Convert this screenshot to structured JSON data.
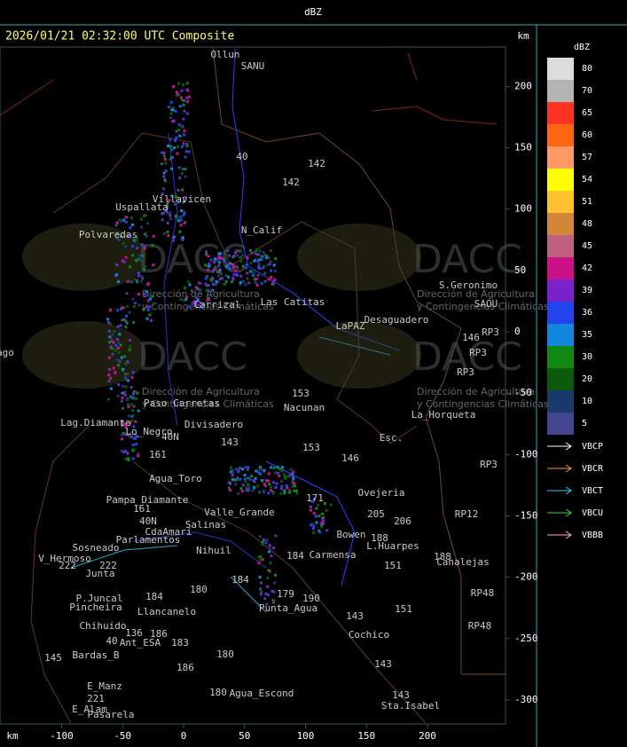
{
  "header": {
    "title": "dBZ"
  },
  "map": {
    "title": "2026/01/21 02:32:00 UTC Composite",
    "unit_top": "km",
    "unit_bottom": "km",
    "y_ticks": [
      200,
      150,
      100,
      50,
      0,
      -50,
      -100,
      -150,
      -200,
      -250,
      -300
    ],
    "x_ticks": [
      -100,
      -50,
      0,
      50,
      100,
      150,
      200
    ],
    "watermark": {
      "logo": "DACC",
      "line1": "Dirección de Agricultura",
      "line2": "y Contingencias Climáticas"
    },
    "places": [
      "Ollun",
      "SANU",
      "40",
      "142",
      "142",
      "Villavicen",
      "Uspallata",
      "N_Calif",
      "Polvaredas",
      "S.Geronimo",
      "SAOU",
      "Desaguadero",
      "LaPAZ",
      "RP3",
      "146",
      "RP3",
      "RP3",
      "Las Catitas",
      "Carrizal",
      "153",
      "Nacunan",
      "La_Horqueta",
      "Esc.",
      "146",
      "Divisadero",
      "Paso Carretas",
      "Lag.Diamante",
      "Lo_Negro",
      "40N",
      "143",
      "161",
      "153",
      "RP3",
      "Agua_Toro",
      "Pampa_Diamante",
      "161",
      "40N",
      "Sosneado",
      "Parlamentos",
      "CdaAmari",
      "Salinas",
      "Valle_Grande",
      "Nihuil",
      "Ovejeria",
      "205",
      "206",
      "RP12",
      "L.Huarpes",
      "188",
      "151",
      "188",
      "Canalejas",
      "Carmensa",
      "184",
      "171",
      "Bowen",
      "V_Hermoso",
      "222",
      "222",
      "Junta",
      "P.Juncal",
      "Pincheira",
      "184",
      "180",
      "184",
      "179",
      "Punta_Agua",
      "190",
      "151",
      "143",
      "RP48",
      "RP48",
      "Llancanelo",
      "Chihuido",
      "136",
      "186",
      "40",
      "Ant_ESA",
      "183",
      "Cochico",
      "145",
      "Bardas_B",
      "180",
      "186",
      "143",
      "E_Manz",
      "221",
      "180",
      "Agua_Escond",
      "143",
      "E_Alam",
      "Pasarela",
      "Sta.Isabel",
      "ago"
    ]
  },
  "legend": {
    "title": "dBZ",
    "scale": [
      {
        "value": 80,
        "color": "#dcdcdc"
      },
      {
        "value": 70,
        "color": "#b4b4b4"
      },
      {
        "value": 65,
        "color": "#ff3322"
      },
      {
        "value": 60,
        "color": "#ff6611"
      },
      {
        "value": 57,
        "color": "#ff9966"
      },
      {
        "value": 54,
        "color": "#ffff00"
      },
      {
        "value": 51,
        "color": "#ffc030"
      },
      {
        "value": 48,
        "color": "#d08838"
      },
      {
        "value": 45,
        "color": "#c06080"
      },
      {
        "value": 42,
        "color": "#cc1188"
      },
      {
        "value": 39,
        "color": "#7a22cc"
      },
      {
        "value": 36,
        "color": "#2244ee"
      },
      {
        "value": 35,
        "color": "#1188dd"
      },
      {
        "value": 30,
        "color": "#118811"
      },
      {
        "value": 20,
        "color": "#0c5a0c"
      },
      {
        "value": 10,
        "color": "#1a3a6a"
      },
      {
        "value": 5,
        "color": "#45458f"
      }
    ],
    "stations": [
      {
        "name": "VBCP",
        "color": "#ffffff"
      },
      {
        "name": "VBCR",
        "color": "#ff9933"
      },
      {
        "name": "VBCT",
        "color": "#33ccff"
      },
      {
        "name": "VBCU",
        "color": "#33dd33"
      },
      {
        "name": "VBBB",
        "color": "#ffaacc"
      }
    ]
  }
}
